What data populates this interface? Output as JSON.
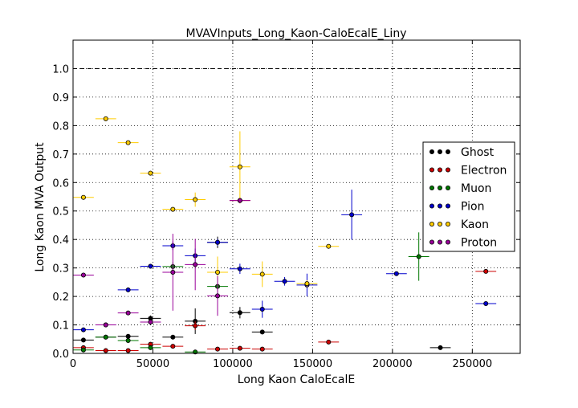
{
  "chart_data": {
    "type": "scatter",
    "title": "MVAVInputs_Long_Kaon-CaloEcalE_Liny",
    "xlabel": "Long Kaon CaloEcalE",
    "ylabel": "Long Kaon MVA Output",
    "xlim": [
      0,
      280000
    ],
    "ylim": [
      0,
      1.1
    ],
    "x_ticks": [
      0,
      50000,
      100000,
      150000,
      200000,
      250000
    ],
    "x_tick_labels": [
      "0",
      "50000",
      "100000",
      "150000",
      "200000",
      "250000"
    ],
    "y_ticks": [
      0.0,
      0.1,
      0.2,
      0.3,
      0.4,
      0.5,
      0.6,
      0.7,
      0.8,
      0.9,
      1.0
    ],
    "y_tick_labels": [
      "0.0",
      "0.1",
      "0.2",
      "0.3",
      "0.4",
      "0.5",
      "0.6",
      "0.7",
      "0.8",
      "0.9",
      "1.0"
    ],
    "grid": true,
    "reference_line": {
      "y": 1.0,
      "style": "dashed"
    },
    "legend_position": "right",
    "series": [
      {
        "name": "Ghost",
        "color": "#000000",
        "points": [
          {
            "x": 6500,
            "y": 0.047,
            "xerr": 6500,
            "yerr": 0.008
          },
          {
            "x": 20500,
            "y": 0.057,
            "xerr": 6500,
            "yerr": 0.006
          },
          {
            "x": 34500,
            "y": 0.06,
            "xerr": 6500,
            "yerr": 0.006
          },
          {
            "x": 48500,
            "y": 0.123,
            "xerr": 6500,
            "yerr": 0.01
          },
          {
            "x": 62500,
            "y": 0.057,
            "xerr": 6500,
            "yerr": 0.008
          },
          {
            "x": 76500,
            "y": 0.113,
            "xerr": 6500,
            "yerr": 0.045
          },
          {
            "x": 90500,
            "y": 0.39,
            "xerr": 6500,
            "yerr": 0.02
          },
          {
            "x": 104500,
            "y": 0.143,
            "xerr": 6500,
            "yerr": 0.02
          },
          {
            "x": 118500,
            "y": 0.075,
            "xerr": 6500,
            "yerr": 0.008
          },
          {
            "x": 230000,
            "y": 0.02,
            "xerr": 6500,
            "yerr": 0.005
          }
        ]
      },
      {
        "name": "Electron",
        "color": "#cc0000",
        "points": [
          {
            "x": 6500,
            "y": 0.02,
            "xerr": 6500,
            "yerr": 0.003
          },
          {
            "x": 20500,
            "y": 0.01,
            "xerr": 6500,
            "yerr": 0.002
          },
          {
            "x": 34500,
            "y": 0.01,
            "xerr": 6500,
            "yerr": 0.002
          },
          {
            "x": 48500,
            "y": 0.032,
            "xerr": 6500,
            "yerr": 0.004
          },
          {
            "x": 62500,
            "y": 0.025,
            "xerr": 6500,
            "yerr": 0.004
          },
          {
            "x": 76500,
            "y": 0.097,
            "xerr": 6500,
            "yerr": 0.015
          },
          {
            "x": 90500,
            "y": 0.015,
            "xerr": 6500,
            "yerr": 0.003
          },
          {
            "x": 104500,
            "y": 0.018,
            "xerr": 6500,
            "yerr": 0.003
          },
          {
            "x": 118500,
            "y": 0.015,
            "xerr": 6500,
            "yerr": 0.003
          },
          {
            "x": 160000,
            "y": 0.04,
            "xerr": 6500,
            "yerr": 0.006
          },
          {
            "x": 104500,
            "y": 0.537,
            "xerr": 6500,
            "yerr": 0.01
          },
          {
            "x": 258500,
            "y": 0.288,
            "xerr": 6500,
            "yerr": 0.006
          }
        ]
      },
      {
        "name": "Muon",
        "color": "#007700",
        "points": [
          {
            "x": 6500,
            "y": 0.012,
            "xerr": 6500,
            "yerr": 0.003
          },
          {
            "x": 20500,
            "y": 0.057,
            "xerr": 6500,
            "yerr": 0.005
          },
          {
            "x": 34500,
            "y": 0.045,
            "xerr": 6500,
            "yerr": 0.005
          },
          {
            "x": 48500,
            "y": 0.02,
            "xerr": 6500,
            "yerr": 0.004
          },
          {
            "x": 62500,
            "y": 0.305,
            "xerr": 6500,
            "yerr": 0.015
          },
          {
            "x": 76500,
            "y": 0.005,
            "xerr": 6500,
            "yerr": 0.002
          },
          {
            "x": 90500,
            "y": 0.235,
            "xerr": 6500,
            "yerr": 0.03
          },
          {
            "x": 216500,
            "y": 0.34,
            "xerr": 6500,
            "yerr": 0.085
          }
        ]
      },
      {
        "name": "Pion",
        "color": "#0000cc",
        "points": [
          {
            "x": 6500,
            "y": 0.083,
            "xerr": 6500,
            "yerr": 0.006
          },
          {
            "x": 20500,
            "y": 0.1,
            "xerr": 6500,
            "yerr": 0.006
          },
          {
            "x": 34500,
            "y": 0.223,
            "xerr": 6500,
            "yerr": 0.008
          },
          {
            "x": 48500,
            "y": 0.306,
            "xerr": 6500,
            "yerr": 0.008
          },
          {
            "x": 62500,
            "y": 0.378,
            "xerr": 6500,
            "yerr": 0.015
          },
          {
            "x": 76500,
            "y": 0.343,
            "xerr": 6500,
            "yerr": 0.025
          },
          {
            "x": 90500,
            "y": 0.39,
            "xerr": 6500,
            "yerr": 0.012
          },
          {
            "x": 104500,
            "y": 0.297,
            "xerr": 6500,
            "yerr": 0.018
          },
          {
            "x": 118500,
            "y": 0.155,
            "xerr": 6500,
            "yerr": 0.03
          },
          {
            "x": 132500,
            "y": 0.253,
            "xerr": 6500,
            "yerr": 0.015
          },
          {
            "x": 146500,
            "y": 0.24,
            "xerr": 6500,
            "yerr": 0.04
          },
          {
            "x": 174500,
            "y": 0.487,
            "xerr": 6500,
            "yerr": 0.088
          },
          {
            "x": 202500,
            "y": 0.28,
            "xerr": 6500,
            "yerr": 0.007
          },
          {
            "x": 258500,
            "y": 0.175,
            "xerr": 6500,
            "yerr": 0.006
          }
        ]
      },
      {
        "name": "Kaon",
        "color": "#ffcc00",
        "points": [
          {
            "x": 6500,
            "y": 0.548,
            "xerr": 6500,
            "yerr": 0.006
          },
          {
            "x": 20500,
            "y": 0.824,
            "xerr": 6500,
            "yerr": 0.006
          },
          {
            "x": 34500,
            "y": 0.74,
            "xerr": 6500,
            "yerr": 0.007
          },
          {
            "x": 48500,
            "y": 0.633,
            "xerr": 6500,
            "yerr": 0.008
          },
          {
            "x": 62500,
            "y": 0.506,
            "xerr": 6500,
            "yerr": 0.008
          },
          {
            "x": 76500,
            "y": 0.54,
            "xerr": 6500,
            "yerr": 0.025
          },
          {
            "x": 90500,
            "y": 0.285,
            "xerr": 6500,
            "yerr": 0.055
          },
          {
            "x": 104500,
            "y": 0.655,
            "xerr": 6500,
            "yerr": 0.125
          },
          {
            "x": 118500,
            "y": 0.278,
            "xerr": 6500,
            "yerr": 0.045
          },
          {
            "x": 146500,
            "y": 0.245,
            "xerr": 6500,
            "yerr": 0.012
          },
          {
            "x": 160000,
            "y": 0.376,
            "xerr": 6500,
            "yerr": 0.005
          }
        ]
      },
      {
        "name": "Proton",
        "color": "#990099",
        "points": [
          {
            "x": 6500,
            "y": 0.275,
            "xerr": 6500,
            "yerr": 0.006
          },
          {
            "x": 20500,
            "y": 0.1,
            "xerr": 6500,
            "yerr": 0.005
          },
          {
            "x": 34500,
            "y": 0.142,
            "xerr": 6500,
            "yerr": 0.007
          },
          {
            "x": 48500,
            "y": 0.11,
            "xerr": 6500,
            "yerr": 0.008
          },
          {
            "x": 62500,
            "y": 0.285,
            "xerr": 6500,
            "yerr": 0.135
          },
          {
            "x": 76500,
            "y": 0.312,
            "xerr": 6500,
            "yerr": 0.09
          },
          {
            "x": 90500,
            "y": 0.202,
            "xerr": 6500,
            "yerr": 0.07
          },
          {
            "x": 104500,
            "y": 0.537,
            "xerr": 6500,
            "yerr": 0.006
          }
        ]
      }
    ]
  }
}
